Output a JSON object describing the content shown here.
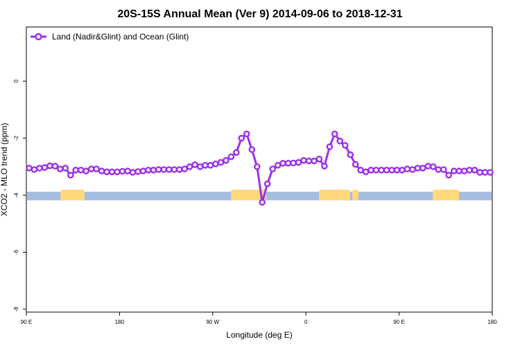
{
  "chart_data": {
    "type": "line",
    "title": "20S-15S Annual Mean (Ver 9)   2014-09-06 to 2018-12-31",
    "xlabel": "Longitude (deg E)",
    "ylabel": "XCO2 - MLO trend (ppm)",
    "x_ticks": [
      "90 E",
      "180",
      "90 W",
      "0",
      "90 E",
      "180"
    ],
    "y_ticks": [
      "0",
      "-2",
      "-4",
      "-6",
      "-8"
    ],
    "y_tick_values": [
      0,
      -2,
      -4,
      -6,
      -8
    ],
    "ylim": [
      -8.1,
      1.9
    ],
    "grid": false,
    "legend_position": "top-left",
    "series": [
      {
        "name": "Land (Nadir&Glint) and Ocean (Glint)",
        "color": "#9b30e8",
        "y": [
          -3.05,
          -3.1,
          -3.05,
          -3.03,
          -2.97,
          -2.98,
          -3.08,
          -3.05,
          -3.3,
          -3.12,
          -3.12,
          -3.15,
          -3.08,
          -3.08,
          -3.15,
          -3.18,
          -3.18,
          -3.18,
          -3.16,
          -3.15,
          -3.2,
          -3.17,
          -3.15,
          -3.12,
          -3.12,
          -3.1,
          -3.1,
          -3.1,
          -3.1,
          -3.1,
          -3.08,
          -3.0,
          -2.93,
          -3.0,
          -2.95,
          -2.95,
          -2.9,
          -2.85,
          -2.78,
          -2.65,
          -2.5,
          -2.0,
          -1.85,
          -2.4,
          -3.0,
          -4.25,
          -3.6,
          -3.08,
          -2.95,
          -2.88,
          -2.88,
          -2.87,
          -2.85,
          -2.78,
          -2.8,
          -2.8,
          -2.73,
          -2.98,
          -2.3,
          -1.85,
          -2.1,
          -2.25,
          -2.58,
          -2.92,
          -3.12,
          -3.18,
          -3.12,
          -3.12,
          -3.12,
          -3.12,
          -3.12,
          -3.12,
          -3.12,
          -3.08,
          -3.1,
          -3.05,
          -3.05,
          -2.98,
          -3.0,
          -3.1,
          -3.1,
          -3.3,
          -3.15,
          -3.15,
          -3.15,
          -3.12,
          -3.12,
          -3.2,
          -3.2,
          -3.2
        ]
      }
    ],
    "surface_colors": {
      "ocean": "#a5bde0",
      "land": "#ffd97a"
    }
  }
}
